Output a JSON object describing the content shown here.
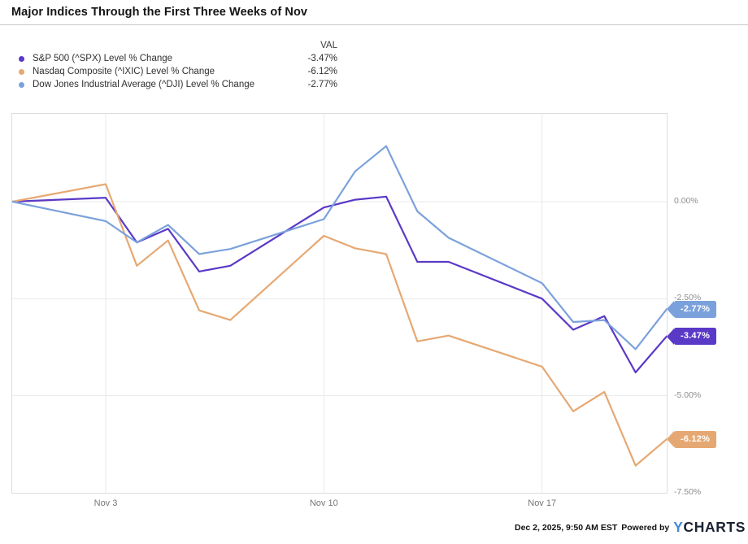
{
  "header": {
    "title": "Major Indices Through the First Three Weeks of Nov"
  },
  "legend": {
    "val_header": "VAL",
    "items": [
      {
        "label": "S&P 500 (^SPX) Level % Change",
        "val": "-3.47%",
        "color": "#5a39c7"
      },
      {
        "label": "Nasdaq Composite (^IXIC) Level % Change",
        "val": "-6.12%",
        "color": "#e6a873"
      },
      {
        "label": "Dow Jones Industrial Average (^DJI) Level % Change",
        "val": "-2.77%",
        "color": "#7ba1dc"
      }
    ]
  },
  "chart_data": {
    "type": "line",
    "title": "Major Indices Through the First Three Weeks of Nov",
    "xlabel": "",
    "ylabel": "Level % Change",
    "x_dates": [
      "Oct 31",
      "Nov 3",
      "Nov 4",
      "Nov 5",
      "Nov 6",
      "Nov 7",
      "Nov 10",
      "Nov 11",
      "Nov 12",
      "Nov 13",
      "Nov 14",
      "Nov 17",
      "Nov 18",
      "Nov 19",
      "Nov 20",
      "Nov 21"
    ],
    "x_day_offsets": [
      0,
      3,
      4,
      5,
      6,
      7,
      10,
      11,
      12,
      13,
      14,
      17,
      18,
      19,
      20,
      21
    ],
    "series": [
      {
        "key": "spx",
        "name": "S&P 500 (^SPX) Level % Change",
        "color": "#5a39c7",
        "end_label": "-3.47%",
        "values": [
          0,
          0.1,
          -1.05,
          -0.7,
          -1.8,
          -1.65,
          -0.15,
          0.05,
          0.13,
          -1.55,
          -1.55,
          -2.5,
          -3.3,
          -2.95,
          -4.4,
          -3.47
        ]
      },
      {
        "key": "ixic",
        "name": "Nasdaq Composite (^IXIC) Level % Change",
        "color": "#e6a873",
        "end_label": "-6.12%",
        "values": [
          0,
          0.45,
          -1.65,
          -1.0,
          -2.8,
          -3.05,
          -0.88,
          -1.2,
          -1.35,
          -3.6,
          -3.45,
          -4.25,
          -5.4,
          -4.9,
          -6.8,
          -6.12
        ]
      },
      {
        "key": "dji",
        "name": "Dow Jones Industrial Average (^DJI) Level % Change",
        "color": "#7ba1dc",
        "end_label": "-2.77%",
        "values": [
          0,
          -0.5,
          -1.05,
          -0.6,
          -1.35,
          -1.22,
          -0.45,
          0.78,
          1.43,
          -0.25,
          -0.93,
          -2.1,
          -3.1,
          -3.05,
          -3.8,
          -2.77
        ]
      }
    ],
    "y_ticks": [
      "0.00%",
      "-2.50%",
      "-5.00%",
      "-7.50%"
    ],
    "y_tick_values": [
      0,
      -2.5,
      -5,
      -7.5
    ],
    "x_ticks": [
      "Nov 3",
      "Nov 10",
      "Nov 17"
    ],
    "x_tick_day_offsets": [
      3,
      10,
      17
    ],
    "ylim": [
      -7.5,
      2.26
    ],
    "grid": true,
    "legend_position": "top-left",
    "gridline_color": "#e9e9e9"
  },
  "footer": {
    "timestamp": "Dec 2, 2025, 9:50 AM EST",
    "powered_by": "Powered by",
    "logo_y": "Y",
    "logo_text": "CHARTS",
    "logo_y_color": "#4486d8"
  }
}
